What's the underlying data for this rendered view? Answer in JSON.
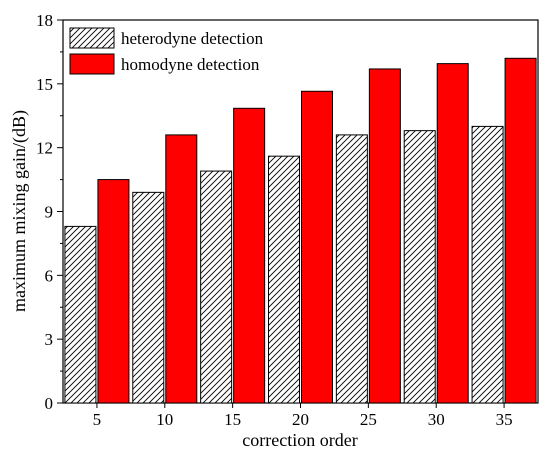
{
  "chart_data": {
    "type": "bar",
    "xlabel": "correction order",
    "ylabel": "maximum mixing gain/(dB)",
    "categories": [
      "5",
      "10",
      "15",
      "20",
      "25",
      "30",
      "35"
    ],
    "ylim": [
      0,
      18
    ],
    "yticks": [
      0,
      3,
      6,
      9,
      12,
      15,
      18
    ],
    "legend_position": "top-left",
    "grid": false,
    "series": [
      {
        "name": "heterodyne detection",
        "fill": "hatched",
        "color": "#ffffff",
        "values": [
          8.3,
          9.9,
          10.9,
          11.6,
          12.6,
          12.8,
          13.0
        ]
      },
      {
        "name": "homodyne detection",
        "fill": "solid",
        "color": "#ff0000",
        "values": [
          10.5,
          12.6,
          13.85,
          14.65,
          15.7,
          15.95,
          16.2
        ]
      }
    ]
  }
}
